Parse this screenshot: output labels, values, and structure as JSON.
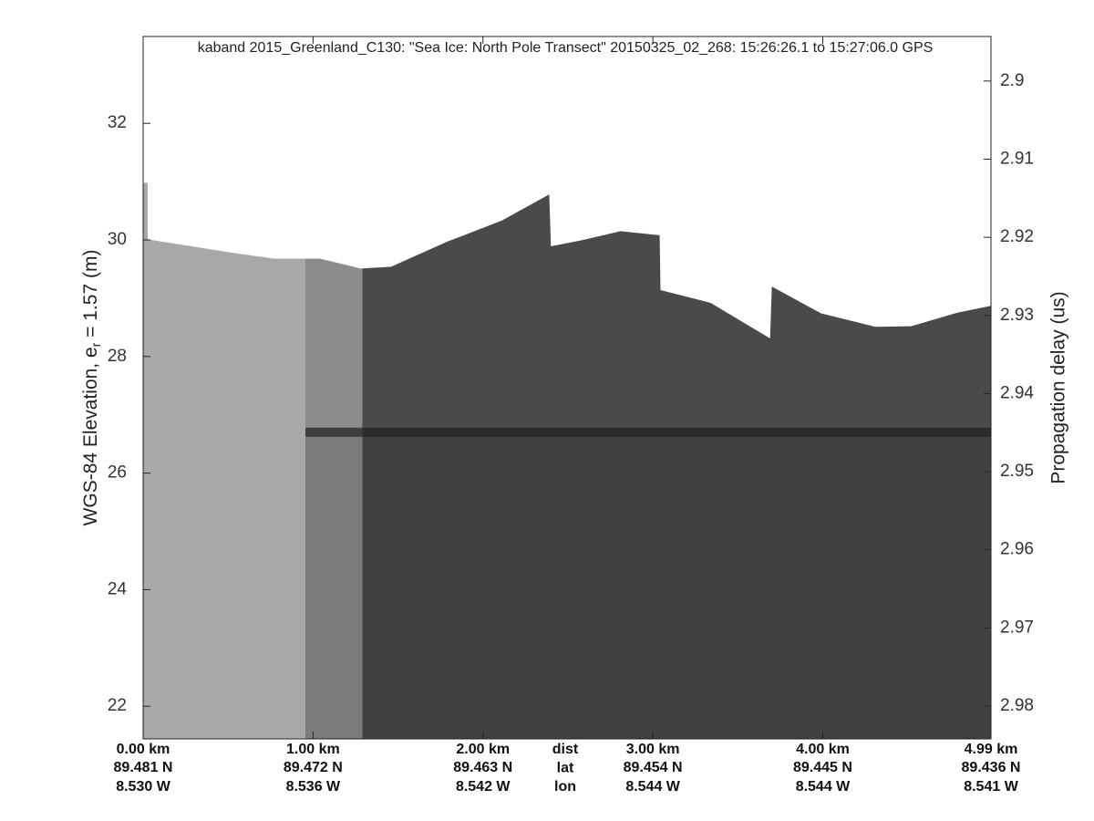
{
  "chart_data": {
    "type": "echogram",
    "title": "kaband 2015_Greenland_C130: \"Sea Ice: North Pole Transect\"  20150325_02_268: 15:26:26.1 to 15:27:06.0 GPS",
    "ylabel_parts": [
      "WGS-84 Elevation, e",
      "r",
      " = 1.57 (m)"
    ],
    "y2label": "Propagation delay (us)",
    "xlim": [
      0,
      4.99
    ],
    "ylim": [
      21.44,
      33.49
    ],
    "y2lim": [
      2.9842,
      2.8943
    ],
    "yticks": [
      22,
      24,
      26,
      28,
      30,
      32
    ],
    "y2ticks": [
      2.9,
      2.91,
      2.92,
      2.93,
      2.94,
      2.95,
      2.96,
      2.97,
      2.98
    ],
    "xticks": [
      {
        "value": 0,
        "label": "0.00 km"
      },
      {
        "value": 1,
        "label": "1.00 km"
      },
      {
        "value": 2,
        "label": "2.00 km"
      },
      {
        "value": 3,
        "label": "3.00 km"
      },
      {
        "value": 4,
        "label": "4.00 km"
      },
      {
        "value": 4.99,
        "label": "4.99 km"
      }
    ],
    "lat_labels": [
      "89.481 N",
      "89.472 N",
      "89.463 N",
      "89.454 N",
      "89.445 N",
      "89.436 N"
    ],
    "lon_labels": [
      "8.530 W",
      "8.536 W",
      "8.542 W",
      "8.544 W",
      "8.544 W",
      "8.541 W"
    ],
    "row_labels": [
      "dist",
      "lat",
      "lon"
    ],
    "surface": {
      "x": [
        0,
        0.027,
        0.027,
        0.5,
        0.77,
        1.04,
        1.28,
        1.46,
        1.79,
        2.11,
        2.39,
        2.4,
        2.59,
        2.81,
        3.04,
        3.045,
        3.34,
        3.69,
        3.7,
        3.99,
        4.31,
        4.52,
        4.79,
        4.99
      ],
      "elevation": [
        30.98,
        30.98,
        30.01,
        29.79,
        29.68,
        29.68,
        29.51,
        29.54,
        29.97,
        30.33,
        30.78,
        29.89,
        30.0,
        30.15,
        30.08,
        29.14,
        28.92,
        28.31,
        29.2,
        28.74,
        28.51,
        28.52,
        28.75,
        28.87
      ]
    },
    "image_segments": [
      {
        "start": 0,
        "end": 0.955,
        "color": "#a8a8a8"
      },
      {
        "start": 0.955,
        "end": 1.29,
        "color": "#8c8c8c"
      },
      {
        "start": 1.29,
        "end": 4.99,
        "color": "#4a4a4a"
      }
    ],
    "reflector": {
      "start": 0.955,
      "end": 4.99,
      "elevation": 26.7,
      "color": "#1e1e1e"
    }
  }
}
